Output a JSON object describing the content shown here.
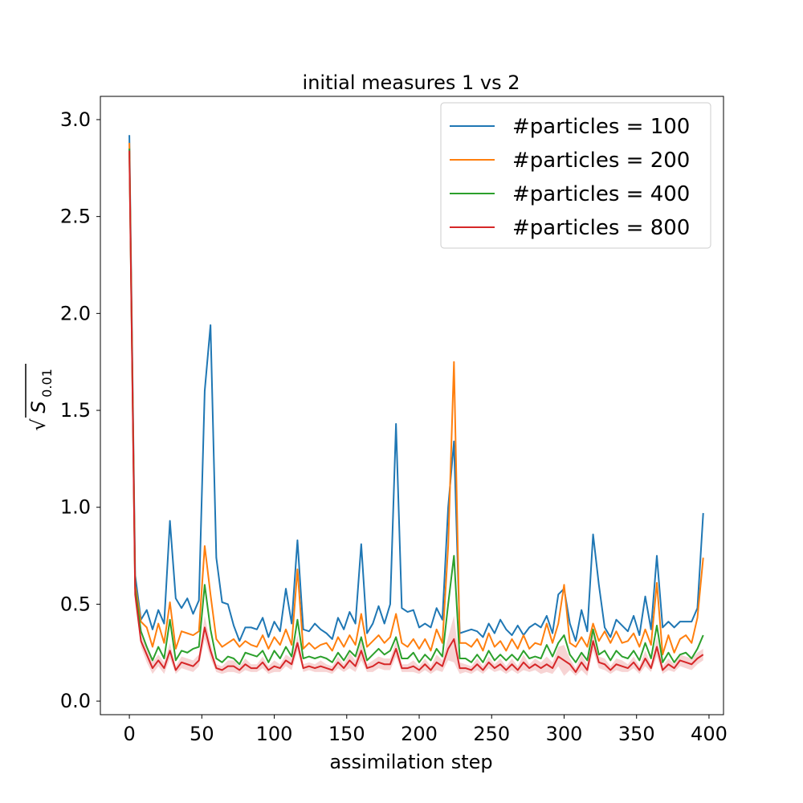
{
  "chart_data": {
    "type": "line",
    "title": "initial measures 1 vs 2",
    "xlabel": "assimilation step",
    "ylabel_radical": "√",
    "ylabel_base": "S",
    "ylabel_sub": "0.01",
    "xlim": [
      -20,
      410
    ],
    "ylim": [
      -0.07,
      3.12
    ],
    "xticks": [
      0,
      50,
      100,
      150,
      200,
      250,
      300,
      350,
      400
    ],
    "xtick_labels": [
      "0",
      "50",
      "100",
      "150",
      "200",
      "250",
      "300",
      "350",
      "400"
    ],
    "yticks": [
      0.0,
      0.5,
      1.0,
      1.5,
      2.0,
      2.5,
      3.0
    ],
    "ytick_labels": [
      "0.0",
      "0.5",
      "1.0",
      "1.5",
      "2.0",
      "2.5",
      "3.0"
    ],
    "grid": false,
    "legend_position": "top-right",
    "x": [
      0,
      4,
      8,
      12,
      16,
      20,
      24,
      28,
      32,
      36,
      40,
      44,
      48,
      52,
      56,
      60,
      64,
      68,
      72,
      76,
      80,
      84,
      88,
      92,
      96,
      100,
      104,
      108,
      112,
      116,
      120,
      124,
      128,
      132,
      136,
      140,
      144,
      148,
      152,
      156,
      160,
      164,
      168,
      172,
      176,
      180,
      184,
      188,
      192,
      196,
      200,
      204,
      208,
      212,
      216,
      220,
      224,
      228,
      232,
      236,
      240,
      244,
      248,
      252,
      256,
      260,
      264,
      268,
      272,
      276,
      280,
      284,
      288,
      292,
      296,
      300,
      304,
      308,
      312,
      316,
      320,
      324,
      328,
      332,
      336,
      340,
      344,
      348,
      352,
      356,
      360,
      364,
      368,
      372,
      376,
      380,
      384,
      388,
      392,
      396
    ],
    "series": [
      {
        "name": "#particles = 100",
        "color": "#1f77b4",
        "values": [
          2.92,
          0.65,
          0.42,
          0.47,
          0.37,
          0.47,
          0.4,
          0.93,
          0.53,
          0.48,
          0.53,
          0.45,
          0.52,
          1.6,
          1.94,
          0.74,
          0.51,
          0.5,
          0.39,
          0.31,
          0.38,
          0.38,
          0.37,
          0.43,
          0.33,
          0.41,
          0.36,
          0.58,
          0.4,
          0.83,
          0.37,
          0.36,
          0.4,
          0.37,
          0.35,
          0.32,
          0.43,
          0.37,
          0.46,
          0.4,
          0.81,
          0.35,
          0.4,
          0.49,
          0.4,
          0.5,
          1.43,
          0.48,
          0.46,
          0.47,
          0.38,
          0.4,
          0.38,
          0.48,
          0.42,
          1.0,
          1.34,
          0.35,
          0.36,
          0.37,
          0.36,
          0.33,
          0.4,
          0.35,
          0.42,
          0.37,
          0.34,
          0.39,
          0.34,
          0.38,
          0.4,
          0.38,
          0.44,
          0.35,
          0.55,
          0.58,
          0.4,
          0.31,
          0.47,
          0.36,
          0.86,
          0.6,
          0.38,
          0.33,
          0.42,
          0.39,
          0.36,
          0.44,
          0.34,
          0.54,
          0.37,
          0.75,
          0.38,
          0.41,
          0.38,
          0.41,
          0.41,
          0.41,
          0.48,
          0.97
        ]
      },
      {
        "name": "#particles = 200",
        "color": "#ff7f0e",
        "values": [
          2.88,
          0.6,
          0.41,
          0.38,
          0.28,
          0.4,
          0.3,
          0.51,
          0.27,
          0.36,
          0.35,
          0.34,
          0.36,
          0.8,
          0.55,
          0.32,
          0.28,
          0.3,
          0.32,
          0.28,
          0.31,
          0.29,
          0.28,
          0.34,
          0.27,
          0.33,
          0.29,
          0.37,
          0.29,
          0.68,
          0.27,
          0.3,
          0.27,
          0.29,
          0.3,
          0.26,
          0.33,
          0.28,
          0.34,
          0.29,
          0.45,
          0.28,
          0.31,
          0.34,
          0.3,
          0.33,
          0.45,
          0.3,
          0.28,
          0.32,
          0.27,
          0.32,
          0.26,
          0.37,
          0.3,
          0.8,
          1.75,
          0.3,
          0.3,
          0.28,
          0.32,
          0.26,
          0.35,
          0.28,
          0.31,
          0.26,
          0.32,
          0.27,
          0.34,
          0.27,
          0.3,
          0.29,
          0.4,
          0.3,
          0.4,
          0.6,
          0.3,
          0.28,
          0.33,
          0.28,
          0.4,
          0.31,
          0.36,
          0.3,
          0.36,
          0.3,
          0.31,
          0.35,
          0.28,
          0.37,
          0.29,
          0.61,
          0.24,
          0.34,
          0.25,
          0.32,
          0.34,
          0.3,
          0.43,
          0.74
        ]
      },
      {
        "name": "#particles = 400",
        "color": "#2ca02c",
        "values": [
          2.85,
          0.58,
          0.36,
          0.28,
          0.21,
          0.28,
          0.22,
          0.42,
          0.21,
          0.26,
          0.25,
          0.27,
          0.28,
          0.6,
          0.37,
          0.22,
          0.2,
          0.23,
          0.22,
          0.19,
          0.25,
          0.24,
          0.23,
          0.26,
          0.2,
          0.26,
          0.22,
          0.28,
          0.23,
          0.42,
          0.22,
          0.23,
          0.22,
          0.23,
          0.22,
          0.2,
          0.25,
          0.21,
          0.26,
          0.23,
          0.33,
          0.21,
          0.24,
          0.27,
          0.24,
          0.26,
          0.33,
          0.22,
          0.22,
          0.25,
          0.2,
          0.24,
          0.21,
          0.27,
          0.23,
          0.5,
          0.75,
          0.22,
          0.22,
          0.2,
          0.24,
          0.2,
          0.26,
          0.21,
          0.24,
          0.21,
          0.24,
          0.21,
          0.26,
          0.22,
          0.23,
          0.22,
          0.29,
          0.23,
          0.3,
          0.34,
          0.24,
          0.2,
          0.25,
          0.21,
          0.37,
          0.24,
          0.26,
          0.21,
          0.26,
          0.23,
          0.22,
          0.26,
          0.21,
          0.3,
          0.22,
          0.39,
          0.2,
          0.25,
          0.2,
          0.24,
          0.25,
          0.22,
          0.27,
          0.34
        ]
      },
      {
        "name": "#particles = 800",
        "color": "#d62728",
        "values": [
          2.84,
          0.55,
          0.31,
          0.24,
          0.17,
          0.21,
          0.17,
          0.26,
          0.16,
          0.2,
          0.19,
          0.18,
          0.21,
          0.38,
          0.26,
          0.17,
          0.16,
          0.18,
          0.18,
          0.16,
          0.19,
          0.17,
          0.17,
          0.2,
          0.16,
          0.18,
          0.17,
          0.21,
          0.19,
          0.3,
          0.17,
          0.18,
          0.17,
          0.18,
          0.17,
          0.16,
          0.2,
          0.17,
          0.21,
          0.18,
          0.26,
          0.17,
          0.18,
          0.2,
          0.19,
          0.19,
          0.27,
          0.17,
          0.17,
          0.18,
          0.16,
          0.19,
          0.16,
          0.2,
          0.18,
          0.27,
          0.32,
          0.17,
          0.17,
          0.16,
          0.19,
          0.16,
          0.2,
          0.17,
          0.19,
          0.16,
          0.19,
          0.16,
          0.2,
          0.17,
          0.19,
          0.17,
          0.19,
          0.17,
          0.23,
          0.21,
          0.19,
          0.15,
          0.2,
          0.16,
          0.31,
          0.2,
          0.19,
          0.16,
          0.19,
          0.18,
          0.17,
          0.2,
          0.16,
          0.22,
          0.17,
          0.28,
          0.16,
          0.19,
          0.17,
          0.21,
          0.2,
          0.19,
          0.22,
          0.24
        ]
      }
    ],
    "band_series": "#particles = 800",
    "band_color": "#d62728",
    "band_halfwidth": [
      0.07,
      0.04,
      0.03,
      0.04,
      0.03,
      0.03,
      0.03,
      0.04,
      0.02,
      0.03,
      0.03,
      0.03,
      0.03,
      0.06,
      0.04,
      0.02,
      0.02,
      0.03,
      0.03,
      0.02,
      0.03,
      0.02,
      0.02,
      0.03,
      0.02,
      0.03,
      0.02,
      0.03,
      0.03,
      0.04,
      0.02,
      0.02,
      0.02,
      0.03,
      0.02,
      0.02,
      0.03,
      0.02,
      0.04,
      0.03,
      0.05,
      0.02,
      0.03,
      0.03,
      0.03,
      0.03,
      0.04,
      0.02,
      0.02,
      0.03,
      0.02,
      0.03,
      0.02,
      0.04,
      0.03,
      0.06,
      0.12,
      0.03,
      0.02,
      0.02,
      0.03,
      0.02,
      0.03,
      0.02,
      0.03,
      0.02,
      0.03,
      0.02,
      0.04,
      0.02,
      0.03,
      0.03,
      0.04,
      0.03,
      0.05,
      0.08,
      0.03,
      0.02,
      0.04,
      0.03,
      0.05,
      0.03,
      0.03,
      0.02,
      0.03,
      0.03,
      0.02,
      0.03,
      0.02,
      0.04,
      0.02,
      0.05,
      0.02,
      0.03,
      0.02,
      0.03,
      0.03,
      0.03,
      0.03,
      0.03
    ]
  }
}
